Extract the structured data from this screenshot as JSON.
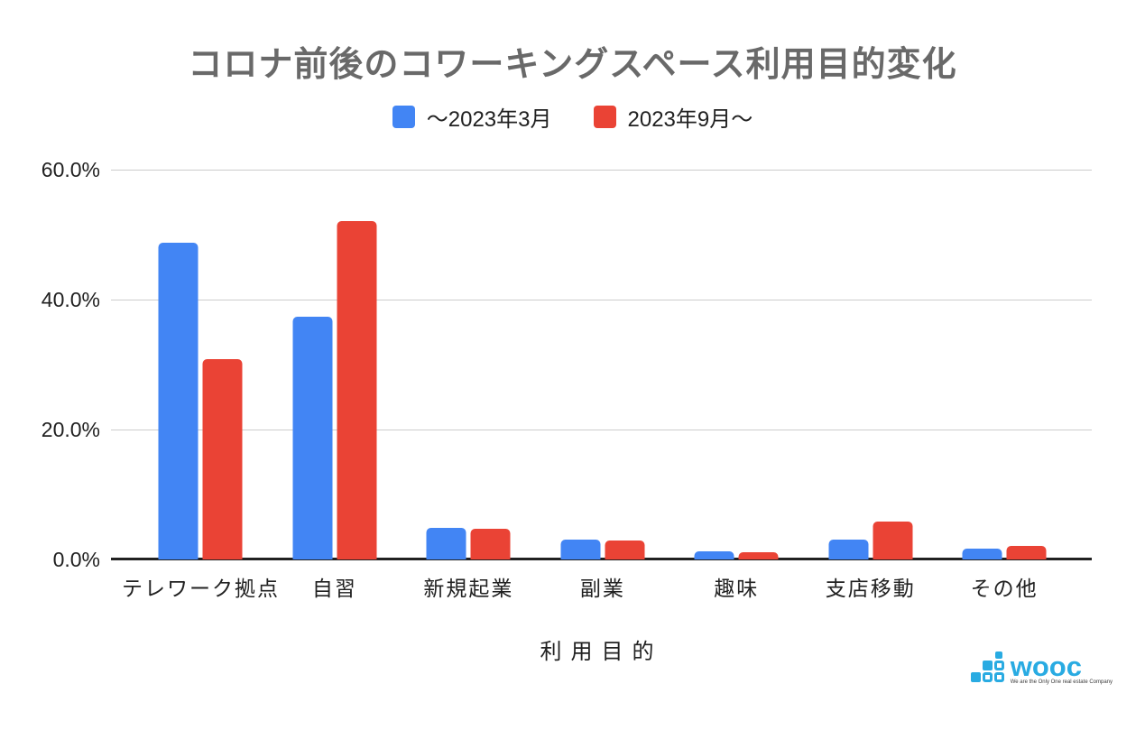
{
  "chart_data": {
    "type": "bar",
    "title": "コロナ前後のコワーキングスペース利用目的変化",
    "categories": [
      "テレワーク拠点",
      "自習",
      "新規起業",
      "副業",
      "趣味",
      "支店移動",
      "その他"
    ],
    "series": [
      {
        "name": "～2023年3月",
        "color": "#4285F4",
        "values": [
          48.8,
          37.4,
          4.9,
          3.1,
          1.2,
          3.1,
          1.7
        ]
      },
      {
        "name": "2023年9月～",
        "color": "#EA4335",
        "values": [
          30.9,
          52.1,
          4.7,
          2.9,
          1.1,
          5.9,
          2.1
        ]
      }
    ],
    "xlabel": "利用目的",
    "ylabel": "",
    "ylim": [
      0,
      60
    ],
    "yticks": [
      {
        "value": 60,
        "label": "60.0%"
      },
      {
        "value": 40,
        "label": "40.0%"
      },
      {
        "value": 20,
        "label": "20.0%"
      },
      {
        "value": 0,
        "label": "0.0%"
      }
    ],
    "grid": true,
    "legend_position": "top",
    "colors": {
      "grid": "#cccccc",
      "axis": "#212121",
      "title": "#696969",
      "text": "#212121",
      "background": "#ffffff"
    }
  },
  "logo": {
    "wordmark": "wooc",
    "tagline": "We are the Only One real estate Company",
    "color": "#29abe2"
  }
}
